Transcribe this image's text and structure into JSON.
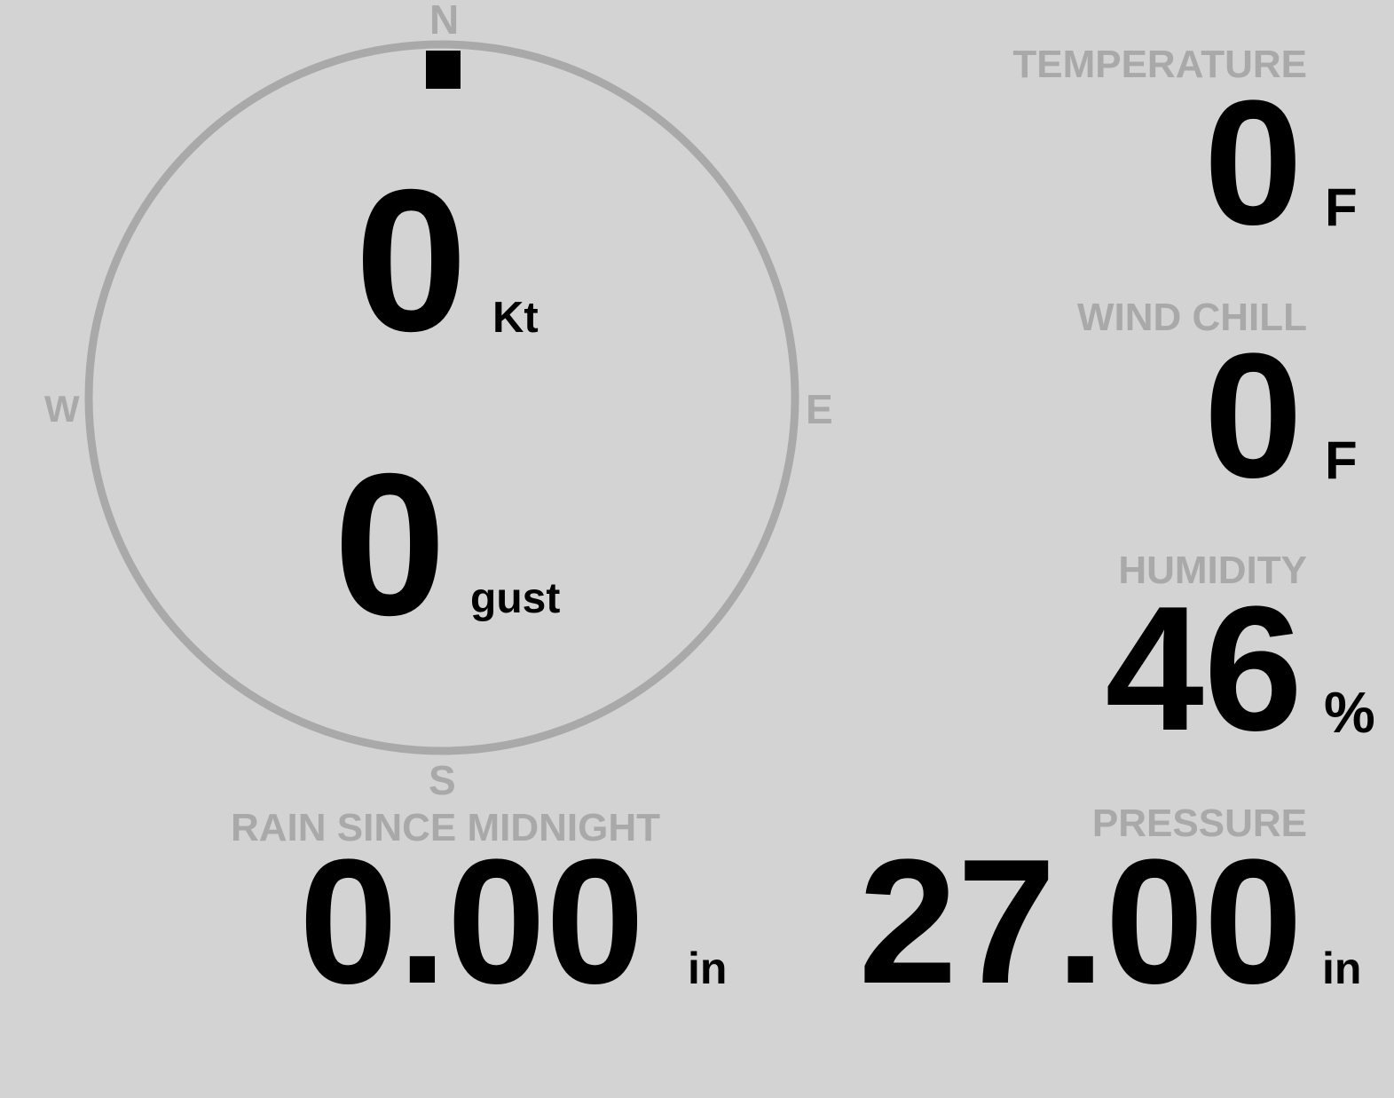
{
  "colors": {
    "background": "#d3d3d3",
    "label": "#a9a9a9",
    "value": "#000000"
  },
  "compass": {
    "north": "N",
    "south": "S",
    "east": "E",
    "west": "W",
    "wind_direction_deg": 0,
    "speed": {
      "value": "0",
      "unit": "Kt"
    },
    "gust": {
      "value": "0",
      "unit": "gust"
    }
  },
  "temperature": {
    "label": "TEMPERATURE",
    "value": "0",
    "unit": "F"
  },
  "wind_chill": {
    "label": "WIND CHILL",
    "value": "0",
    "unit": "F"
  },
  "humidity": {
    "label": "HUMIDITY",
    "value": "46",
    "unit": "%"
  },
  "rain": {
    "label": "RAIN SINCE MIDNIGHT",
    "value": "0.00",
    "unit": "in"
  },
  "pressure": {
    "label": "PRESSURE",
    "value": "27.00",
    "unit": "in"
  }
}
